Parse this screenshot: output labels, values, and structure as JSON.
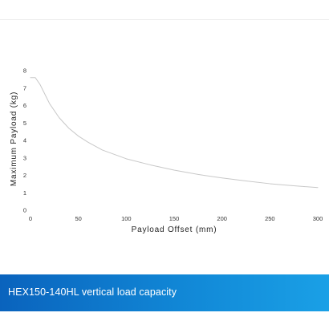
{
  "caption": "HEX150-140HL vertical load capacity",
  "chart_data": {
    "type": "line",
    "title": "",
    "xlabel": "Payload Offset (mm)",
    "ylabel": "Maximum Payload (kg)",
    "xlim": [
      0,
      300
    ],
    "ylim": [
      0,
      8
    ],
    "x_ticks": [
      0,
      50,
      100,
      150,
      200,
      250,
      300
    ],
    "y_ticks": [
      0,
      1,
      2,
      3,
      4,
      5,
      6,
      7,
      8
    ],
    "grid": false,
    "legend": "none",
    "line_color": "#c8c8c8",
    "series": [
      {
        "x": [
          0,
          5,
          10,
          20,
          30,
          40,
          50,
          60,
          75,
          100,
          125,
          150,
          175,
          200,
          225,
          250,
          275,
          300
        ],
        "y": [
          7.6,
          7.6,
          7.2,
          6.1,
          5.3,
          4.7,
          4.25,
          3.9,
          3.45,
          2.95,
          2.6,
          2.3,
          2.05,
          1.85,
          1.68,
          1.52,
          1.4,
          1.3
        ]
      }
    ]
  }
}
